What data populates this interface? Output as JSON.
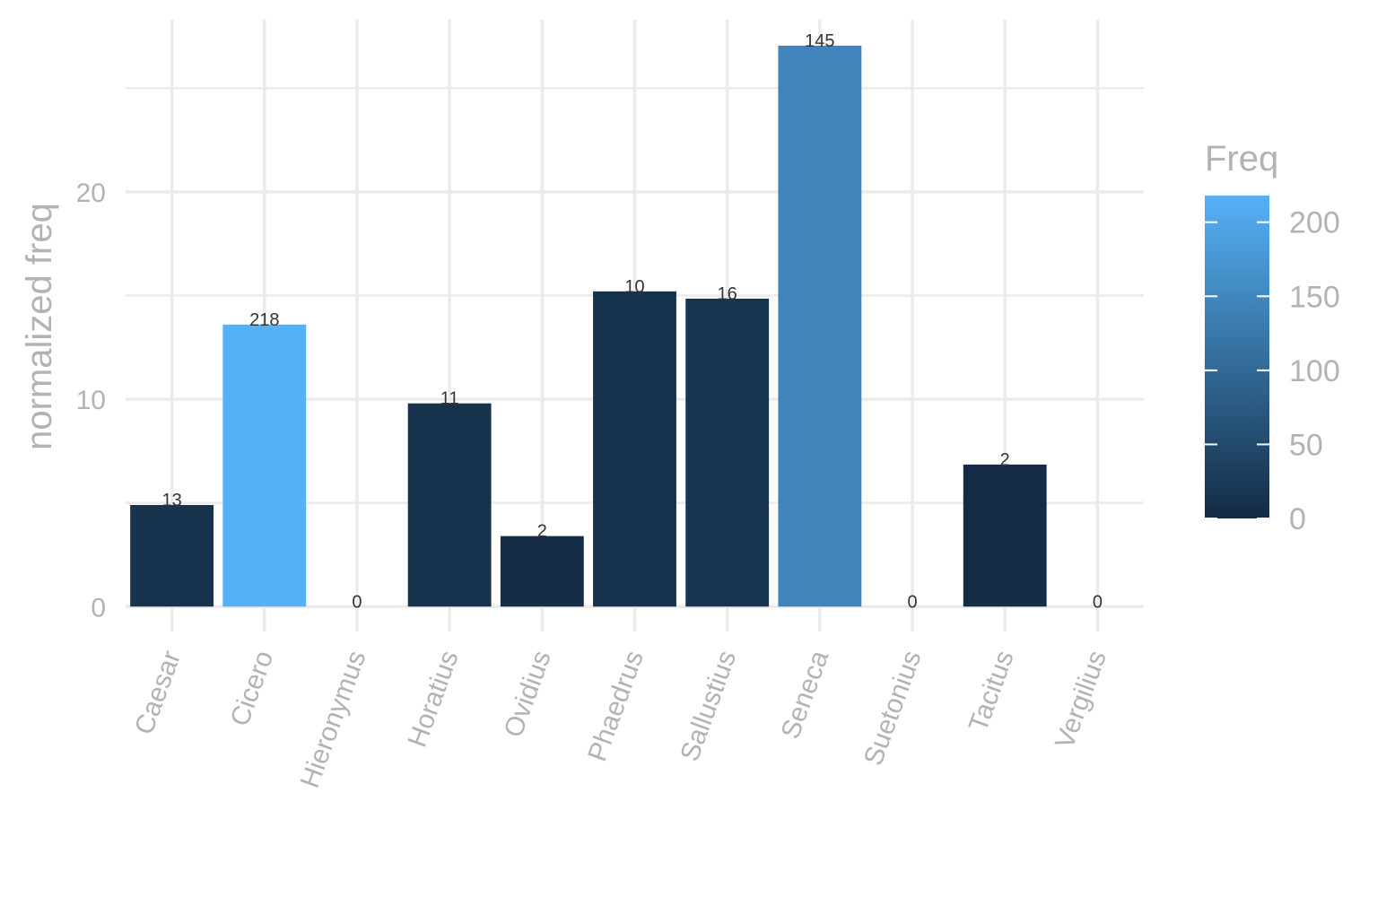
{
  "chart_data": {
    "type": "bar",
    "ylabel": "normalized freq",
    "categories": [
      "Caesar",
      "Cicero",
      "Hieronymus",
      "Horatius",
      "Ovidius",
      "Phaedrus",
      "Sallustius",
      "Seneca",
      "Suetonius",
      "Tacitus",
      "Vergilius"
    ],
    "values": [
      4.9,
      13.6,
      0,
      9.8,
      3.4,
      15.2,
      14.85,
      27.05,
      0,
      6.85,
      0
    ],
    "freq": [
      13,
      218,
      0,
      11,
      2,
      10,
      16,
      145,
      0,
      2,
      0
    ],
    "bar_labels": [
      "13",
      "218",
      "0",
      "11",
      "2",
      "10",
      "16",
      "145",
      "0",
      "2",
      "0"
    ],
    "ylim": [
      -1.2,
      28.3
    ],
    "yticks": [
      0,
      10,
      20
    ],
    "ytick_labels": [
      "0",
      "10",
      "20"
    ],
    "grid": true,
    "legend": {
      "title": "Freq",
      "placement": "right",
      "type": "colorbar",
      "range": [
        0,
        218
      ],
      "ticks": [
        0,
        50,
        100,
        150,
        200
      ],
      "tick_labels": [
        "0",
        "50",
        "100",
        "150",
        "200"
      ],
      "color_low": "#132B43",
      "color_high": "#56B1F7"
    }
  }
}
